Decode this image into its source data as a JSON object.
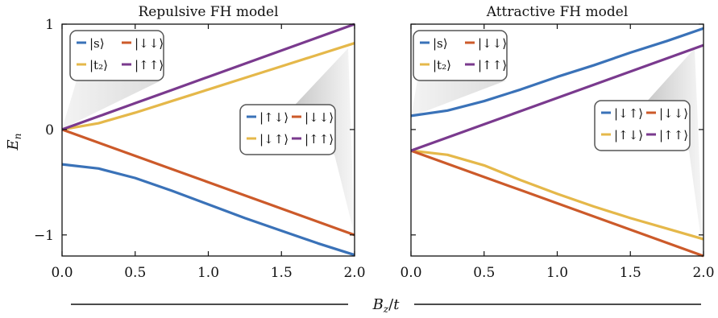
{
  "colors": {
    "blue": "#3a72b8",
    "orange": "#cc5a2a",
    "yellow": "#e5b84a",
    "purple": "#7a3a8e"
  },
  "figure": {
    "ylabel": "E_n",
    "xlabel": "B_z/t"
  },
  "chart_data": [
    {
      "type": "line",
      "title": "Repulsive FH model",
      "xlim": [
        0,
        2.0
      ],
      "ylim": [
        -1.2,
        1.0
      ],
      "xticks": [
        0,
        0.5,
        1.0,
        1.5,
        2.0
      ],
      "xtick_labels": [
        "0.0",
        "0.5",
        "1.0",
        "1.5",
        "2.0"
      ],
      "yticks": [
        1,
        0,
        -1
      ],
      "ytick_labels": [
        "1",
        "0",
        "−1"
      ],
      "grid": false,
      "x": [
        0,
        0.25,
        0.5,
        0.75,
        1.0,
        1.25,
        1.5,
        1.75,
        2.0
      ],
      "series": [
        {
          "name": "|s⟩",
          "color": "blue",
          "values": [
            -0.33,
            -0.37,
            -0.46,
            -0.58,
            -0.71,
            -0.84,
            -0.96,
            -1.08,
            -1.19
          ]
        },
        {
          "name": "|t2⟩",
          "color": "yellow",
          "values": [
            0.0,
            0.06,
            0.16,
            0.27,
            0.38,
            0.49,
            0.6,
            0.71,
            0.82
          ]
        },
        {
          "name": "|↓↓⟩",
          "color": "orange",
          "values": [
            0.0,
            -0.125,
            -0.25,
            -0.375,
            -0.5,
            -0.625,
            -0.75,
            -0.875,
            -1.0
          ]
        },
        {
          "name": "|↑↑⟩",
          "color": "purple",
          "values": [
            0.0,
            0.125,
            0.25,
            0.375,
            0.5,
            0.625,
            0.75,
            0.875,
            1.0
          ]
        }
      ],
      "legend_top": [
        {
          "label": "|s⟩",
          "color": "blue"
        },
        {
          "label": "|↓↓⟩",
          "color": "orange"
        },
        {
          "label": "|t₂⟩",
          "color": "yellow"
        },
        {
          "label": "|↑↑⟩",
          "color": "purple"
        }
      ],
      "legend_inset": [
        {
          "label": "|↑↓⟩",
          "color": "blue"
        },
        {
          "label": "|↓↓⟩",
          "color": "orange"
        },
        {
          "label": "|↓↑⟩",
          "color": "yellow"
        },
        {
          "label": "|↑↑⟩",
          "color": "purple"
        }
      ]
    },
    {
      "type": "line",
      "title": "Attractive FH model",
      "xlim": [
        0,
        2.0
      ],
      "ylim": [
        -1.2,
        1.0
      ],
      "xticks": [
        0,
        0.5,
        1.0,
        1.5,
        2.0
      ],
      "xtick_labels": [
        "0.0",
        "0.5",
        "1.0",
        "1.5",
        "2.0"
      ],
      "grid": false,
      "x": [
        0,
        0.25,
        0.5,
        0.75,
        1.0,
        1.25,
        1.5,
        1.75,
        2.0
      ],
      "series": [
        {
          "name": "|s⟩",
          "color": "blue",
          "values": [
            0.13,
            0.18,
            0.27,
            0.38,
            0.5,
            0.61,
            0.73,
            0.84,
            0.96
          ]
        },
        {
          "name": "|t2⟩",
          "color": "yellow",
          "values": [
            -0.2,
            -0.24,
            -0.34,
            -0.48,
            -0.61,
            -0.73,
            -0.84,
            -0.94,
            -1.04
          ]
        },
        {
          "name": "|↓↓⟩",
          "color": "orange",
          "values": [
            -0.2,
            -0.325,
            -0.45,
            -0.575,
            -0.7,
            -0.825,
            -0.95,
            -1.075,
            -1.2
          ]
        },
        {
          "name": "|↑↑⟩",
          "color": "purple",
          "values": [
            -0.2,
            -0.075,
            0.05,
            0.175,
            0.3,
            0.425,
            0.55,
            0.675,
            0.8
          ]
        }
      ],
      "legend_top": [
        {
          "label": "|s⟩",
          "color": "blue"
        },
        {
          "label": "|↓↓⟩",
          "color": "orange"
        },
        {
          "label": "|t₂⟩",
          "color": "yellow"
        },
        {
          "label": "|↑↑⟩",
          "color": "purple"
        }
      ],
      "legend_inset": [
        {
          "label": "|↓↑⟩",
          "color": "blue"
        },
        {
          "label": "|↓↓⟩",
          "color": "orange"
        },
        {
          "label": "|↑↓⟩",
          "color": "yellow"
        },
        {
          "label": "|↑↑⟩",
          "color": "purple"
        }
      ]
    }
  ]
}
